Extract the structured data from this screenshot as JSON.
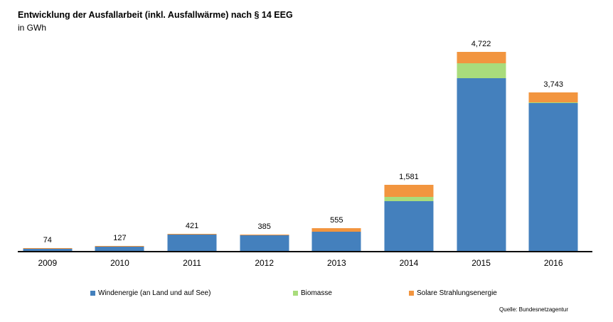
{
  "title": "Entwicklung der Ausfallarbeit (inkl. Ausfallwärme) nach § 14 EEG",
  "subtitle": "in GWh",
  "source": "Quelle: Bundesnetzagentur",
  "colors": {
    "wind": "#4480BD",
    "biomasse": "#A9DC7C",
    "solar": "#F2953F",
    "axis": "#0D0D0D"
  },
  "chart_data": {
    "type": "bar",
    "stacked": true,
    "title": "Entwicklung der Ausfallarbeit (inkl. Ausfallwärme) nach § 14 EEG",
    "unit": "GWh",
    "categories": [
      "2009",
      "2010",
      "2011",
      "2012",
      "2013",
      "2014",
      "2015",
      "2016"
    ],
    "totals": [
      74,
      127,
      421,
      385,
      555,
      1581,
      4722,
      3743
    ],
    "total_labels": [
      "74",
      "127",
      "421",
      "385",
      "555",
      "1,581",
      "4,722",
      "3,743"
    ],
    "series": [
      {
        "name": "Windenergie (an Land und auf See)",
        "color": "#4480BD",
        "values": [
          70,
          120,
          405,
          380,
          475,
          1185,
          4100,
          3500
        ]
      },
      {
        "name": "Biomasse",
        "color": "#A9DC7C",
        "values": [
          0,
          0,
          0,
          0,
          0,
          115,
          352,
          10
        ]
      },
      {
        "name": "Solare Strahlungsenergie",
        "color": "#F2953F",
        "values": [
          4,
          7,
          16,
          5,
          80,
          281,
          270,
          233
        ]
      }
    ],
    "ylim": [
      0,
      5000
    ],
    "grid": false,
    "legend_position": "bottom",
    "data_labels": "totals above bars"
  },
  "legend": {
    "items": [
      {
        "label": "Windenergie (an Land und auf See)",
        "color": "#4480BD"
      },
      {
        "label": "Biomasse",
        "color": "#A9DC7C"
      },
      {
        "label": "Solare Strahlungsenergie",
        "color": "#F2953F"
      }
    ]
  }
}
